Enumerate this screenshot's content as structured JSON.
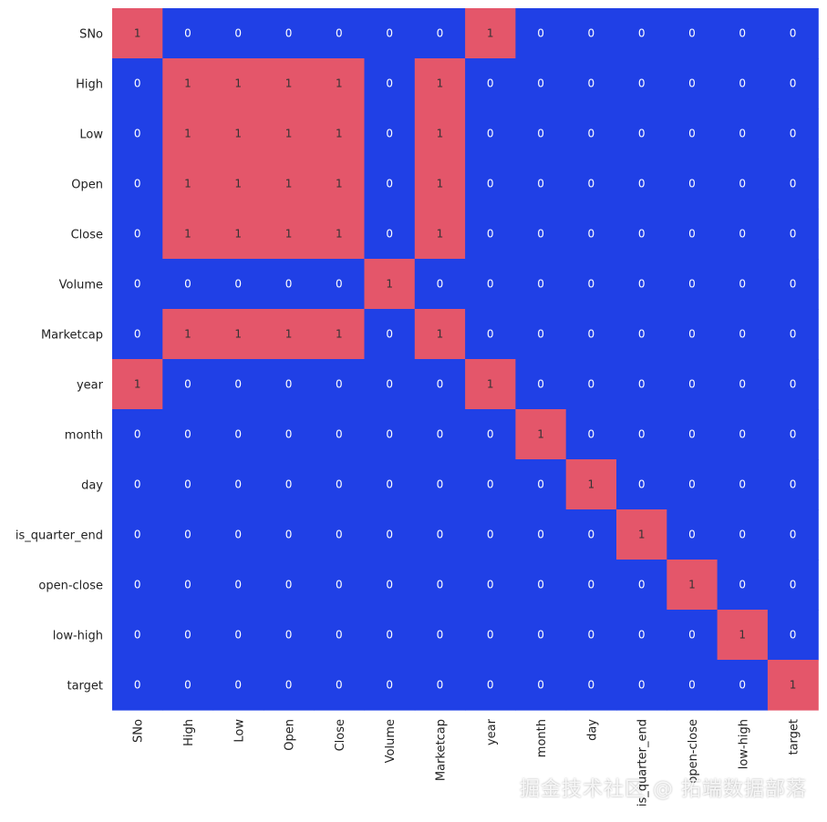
{
  "chart_data": {
    "type": "heatmap",
    "x_labels": [
      "SNo",
      "High",
      "Low",
      "Open",
      "Close",
      "Volume",
      "Marketcap",
      "year",
      "month",
      "day",
      "is_quarter_end",
      "open-close",
      "low-high",
      "target"
    ],
    "y_labels": [
      "SNo",
      "High",
      "Low",
      "Open",
      "Close",
      "Volume",
      "Marketcap",
      "year",
      "month",
      "day",
      "is_quarter_end",
      "open-close",
      "low-high",
      "target"
    ],
    "values": [
      [
        1,
        0,
        0,
        0,
        0,
        0,
        0,
        1,
        0,
        0,
        0,
        0,
        0,
        0
      ],
      [
        0,
        1,
        1,
        1,
        1,
        0,
        1,
        0,
        0,
        0,
        0,
        0,
        0,
        0
      ],
      [
        0,
        1,
        1,
        1,
        1,
        0,
        1,
        0,
        0,
        0,
        0,
        0,
        0,
        0
      ],
      [
        0,
        1,
        1,
        1,
        1,
        0,
        1,
        0,
        0,
        0,
        0,
        0,
        0,
        0
      ],
      [
        0,
        1,
        1,
        1,
        1,
        0,
        1,
        0,
        0,
        0,
        0,
        0,
        0,
        0
      ],
      [
        0,
        0,
        0,
        0,
        0,
        1,
        0,
        0,
        0,
        0,
        0,
        0,
        0,
        0
      ],
      [
        0,
        1,
        1,
        1,
        1,
        0,
        1,
        0,
        0,
        0,
        0,
        0,
        0,
        0
      ],
      [
        1,
        0,
        0,
        0,
        0,
        0,
        0,
        1,
        0,
        0,
        0,
        0,
        0,
        0
      ],
      [
        0,
        0,
        0,
        0,
        0,
        0,
        0,
        0,
        1,
        0,
        0,
        0,
        0,
        0
      ],
      [
        0,
        0,
        0,
        0,
        0,
        0,
        0,
        0,
        0,
        1,
        0,
        0,
        0,
        0
      ],
      [
        0,
        0,
        0,
        0,
        0,
        0,
        0,
        0,
        0,
        0,
        1,
        0,
        0,
        0
      ],
      [
        0,
        0,
        0,
        0,
        0,
        0,
        0,
        0,
        0,
        0,
        0,
        1,
        0,
        0
      ],
      [
        0,
        0,
        0,
        0,
        0,
        0,
        0,
        0,
        0,
        0,
        0,
        0,
        1,
        0
      ],
      [
        0,
        0,
        0,
        0,
        0,
        0,
        0,
        0,
        0,
        0,
        0,
        0,
        0,
        1
      ]
    ],
    "annotations": true,
    "colors": {
      "0": "#2040e6",
      "1": "#e4566a"
    },
    "legend": "none"
  },
  "watermark": "掘金技术社区 @ 拓端数据部落"
}
